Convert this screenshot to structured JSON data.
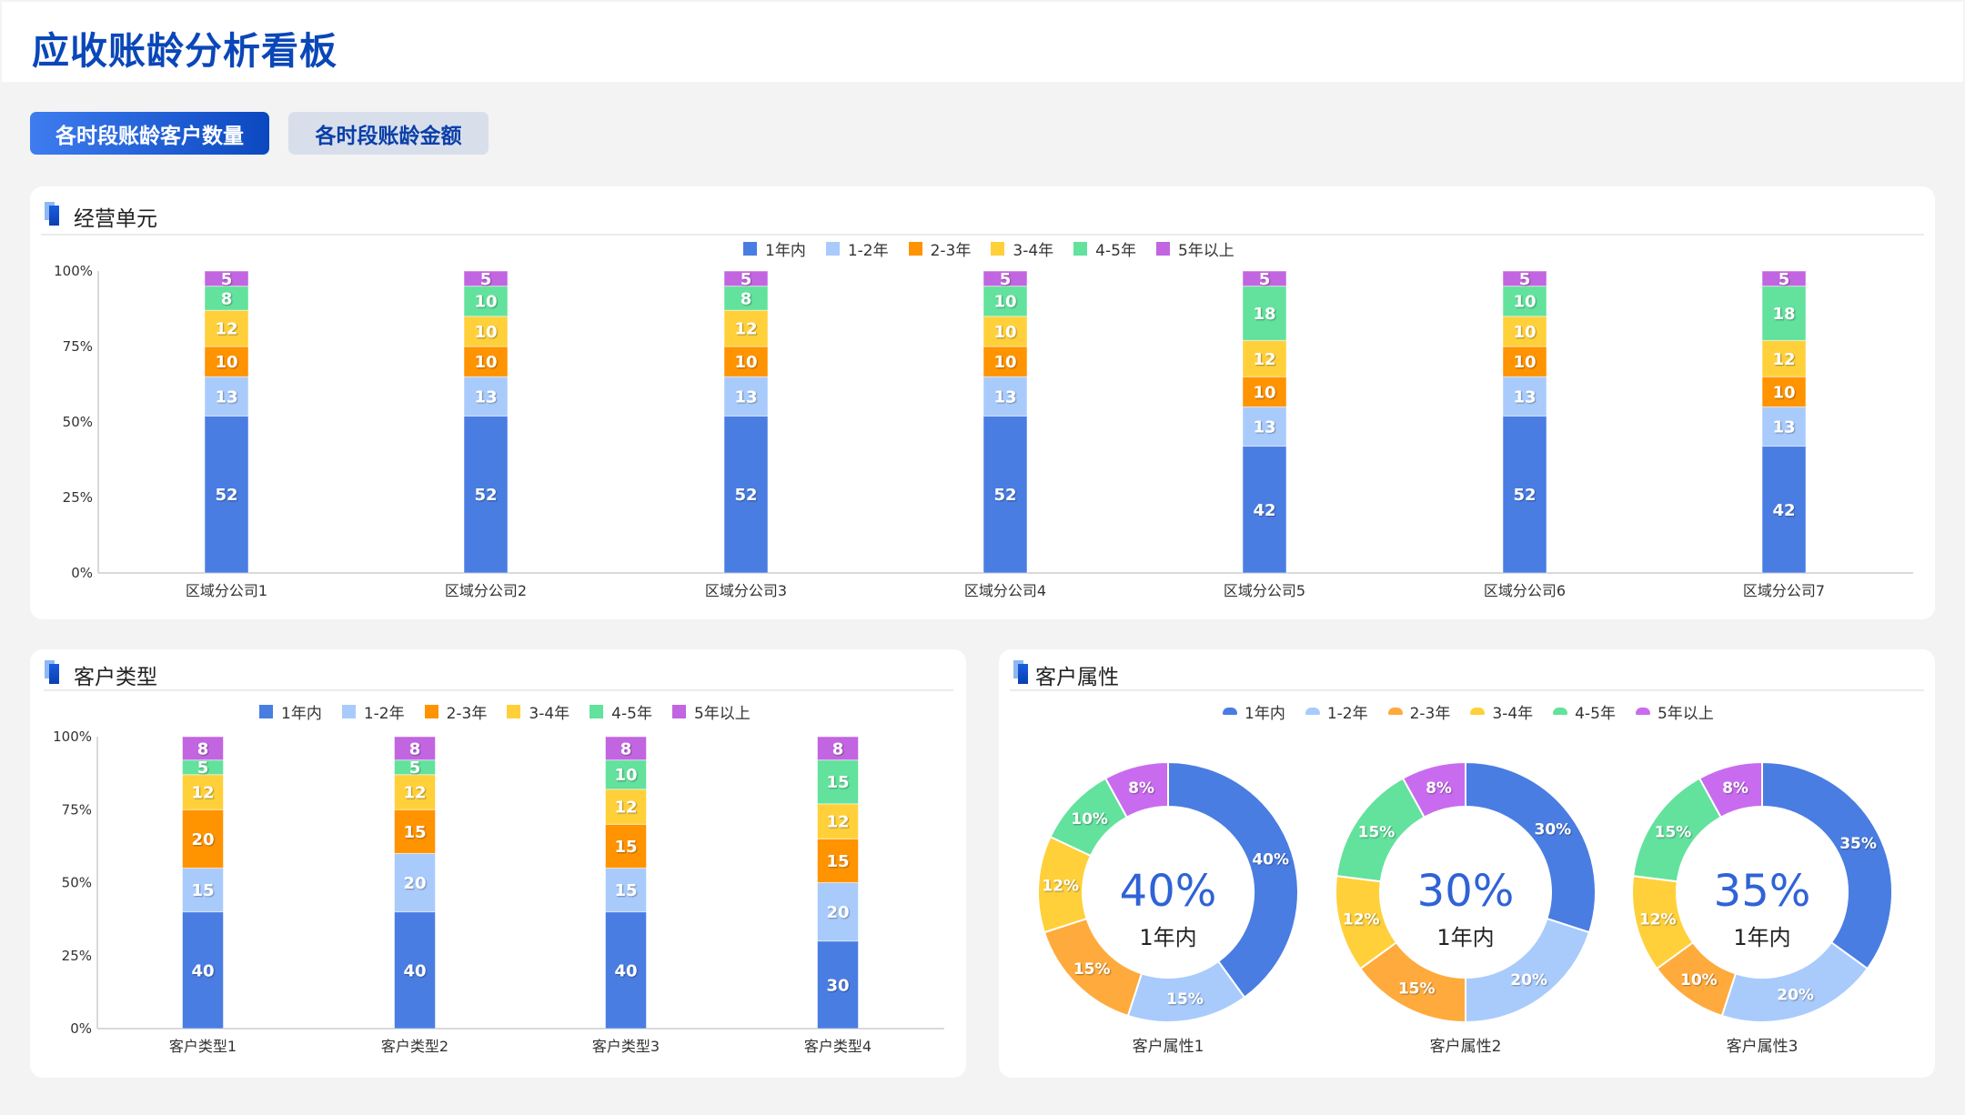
{
  "header": {
    "title": "应收账龄分析看板"
  },
  "tabs": [
    {
      "label": "各时段账龄客户数量",
      "active": true
    },
    {
      "label": "各时段账龄金额",
      "active": false
    }
  ],
  "legend": {
    "items": [
      {
        "label": "1年内",
        "color": "#4a7de2"
      },
      {
        "label": "1-2年",
        "color": "#a9cbfc"
      },
      {
        "label": "2-3年",
        "color": "#ff9300"
      },
      {
        "label": "3-4年",
        "color": "#ffd03a"
      },
      {
        "label": "4-5年",
        "color": "#62e29c"
      },
      {
        "label": "5年以上",
        "color": "#c265e1"
      }
    ],
    "donut_colors": [
      "#4a7de2",
      "#a9cbfc",
      "#ffaa3c",
      "#ffd03a",
      "#62e29c",
      "#c96bef"
    ]
  },
  "panels": {
    "business_unit": {
      "title": "经营单元"
    },
    "customer_type": {
      "title": "客户类型"
    },
    "customer_attr": {
      "title": "客户属性"
    }
  },
  "chart_data": [
    {
      "id": "business_unit",
      "type": "bar",
      "stacked": true,
      "normalized": true,
      "title": "经营单元",
      "categories": [
        "区域分公司1",
        "区域分公司2",
        "区域分公司3",
        "区域分公司4",
        "区域分公司5",
        "区域分公司6",
        "区域分公司7"
      ],
      "series": [
        {
          "name": "1年内",
          "values": [
            52,
            52,
            52,
            52,
            42,
            52,
            42
          ]
        },
        {
          "name": "1-2年",
          "values": [
            13,
            13,
            13,
            13,
            13,
            13,
            13
          ]
        },
        {
          "name": "2-3年",
          "values": [
            10,
            10,
            10,
            10,
            10,
            10,
            10
          ]
        },
        {
          "name": "3-4年",
          "values": [
            12,
            10,
            12,
            10,
            12,
            10,
            12
          ]
        },
        {
          "name": "4-5年",
          "values": [
            8,
            10,
            8,
            10,
            18,
            10,
            18
          ]
        },
        {
          "name": "5年以上",
          "values": [
            5,
            5,
            5,
            5,
            5,
            5,
            5
          ]
        }
      ],
      "yticks": [
        "0%",
        "25%",
        "50%",
        "75%",
        "100%"
      ],
      "ylim": [
        0,
        100
      ],
      "legend": "top-center",
      "grid": false
    },
    {
      "id": "customer_type",
      "type": "bar",
      "stacked": true,
      "normalized": true,
      "title": "客户类型",
      "categories": [
        "客户类型1",
        "客户类型2",
        "客户类型3",
        "客户类型4"
      ],
      "series": [
        {
          "name": "1年内",
          "values": [
            40,
            40,
            40,
            30
          ]
        },
        {
          "name": "1-2年",
          "values": [
            15,
            20,
            15,
            20
          ]
        },
        {
          "name": "2-3年",
          "values": [
            20,
            15,
            15,
            15
          ]
        },
        {
          "name": "3-4年",
          "values": [
            12,
            12,
            12,
            12
          ]
        },
        {
          "name": "4-5年",
          "values": [
            5,
            5,
            10,
            15
          ]
        },
        {
          "name": "5年以上",
          "values": [
            8,
            8,
            8,
            8
          ]
        }
      ],
      "yticks": [
        "0%",
        "25%",
        "50%",
        "75%",
        "100%"
      ],
      "ylim": [
        0,
        100
      ],
      "legend": "top-center",
      "grid": false
    },
    {
      "id": "customer_attr",
      "type": "pie",
      "donut": true,
      "title": "客户属性",
      "labels": [
        "1年内",
        "1-2年",
        "2-3年",
        "3-4年",
        "4-5年",
        "5年以上"
      ],
      "pies": [
        {
          "name": "客户属性1",
          "center_value": "40%",
          "center_label": "1年内",
          "values": [
            40,
            15,
            15,
            12,
            10,
            8
          ]
        },
        {
          "name": "客户属性2",
          "center_value": "30%",
          "center_label": "1年内",
          "values": [
            30,
            20,
            15,
            12,
            15,
            8
          ]
        },
        {
          "name": "客户属性3",
          "center_value": "35%",
          "center_label": "1年内",
          "values": [
            35,
            20,
            10,
            12,
            15,
            8
          ]
        }
      ],
      "legend": "top-center"
    }
  ]
}
